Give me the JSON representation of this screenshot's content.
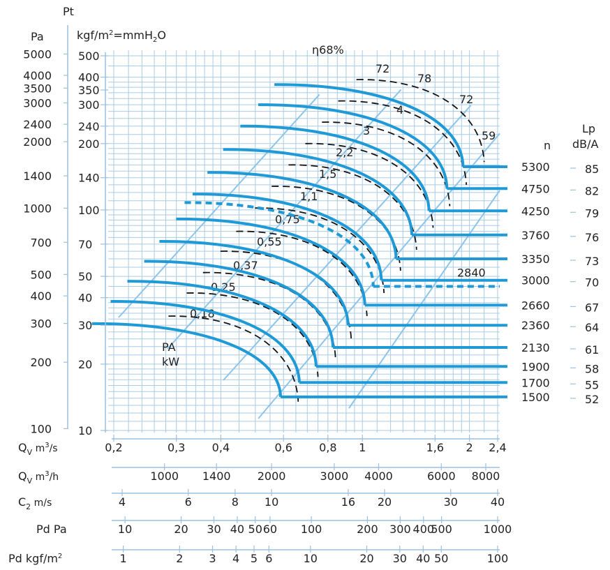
{
  "chart_data": {
    "type": "line",
    "title": "",
    "axes": {
      "pt_label": "Pt",
      "pa_label": "Pa",
      "kgf_label_parts": {
        "pre": "kgf/m",
        "sup": "2",
        "mid": "=mmH",
        "sub": "2",
        "post": "O"
      },
      "pa_ticks": [
        "5000",
        "4000",
        "3500",
        "3000",
        "2400",
        "2000",
        "1400",
        "1000",
        "700",
        "500",
        "400",
        "300",
        "200",
        "100"
      ],
      "kgf_ticks": [
        "500",
        "400",
        "350",
        "300",
        "240",
        "200",
        "140",
        "100",
        "70",
        "50",
        "40",
        "30",
        "20",
        "10"
      ],
      "ylim_kgf": [
        10,
        500
      ],
      "scale": "log"
    },
    "x_scales": [
      {
        "label": "Q",
        "label_sub": "V",
        "unit": " m",
        "unit_sup": "3",
        "unit_post": "/s",
        "ticks": [
          "0,2",
          "0,3",
          "0,4",
          "0,6",
          "0,8",
          "1",
          "1,6",
          "2",
          "2,4"
        ]
      },
      {
        "label": "Q",
        "label_sub": "V",
        "unit": " m",
        "unit_sup": "3",
        "unit_post": "/h",
        "ticks": [
          "1000",
          "1400",
          "2000",
          "3000",
          "4000",
          "6000",
          "8000"
        ]
      },
      {
        "label": "C",
        "label_sub": "2",
        "unit": " m/s",
        "unit_sup": "",
        "unit_post": "",
        "ticks": [
          "4",
          "6",
          "8",
          "10",
          "16",
          "20",
          "30",
          "40"
        ]
      },
      {
        "label": "Pd Pa",
        "label_sub": "",
        "unit": "",
        "unit_sup": "",
        "unit_post": "",
        "ticks": [
          "10",
          "20",
          "30",
          "40",
          "50",
          "60",
          "100",
          "200",
          "300",
          "400",
          "500",
          "1000"
        ]
      },
      {
        "label": "Pd kgf/m",
        "label_sub": "",
        "unit": "",
        "unit_sup": "2",
        "unit_post": "",
        "ticks": [
          "1",
          "2",
          "3",
          "4",
          "5",
          "6",
          "10",
          "20",
          "30",
          "40",
          "50",
          "100"
        ]
      }
    ],
    "efficiency_lines": [
      "η68%",
      "72",
      "78",
      "72",
      "59"
    ],
    "power_labels": [
      "0,18",
      "0,25",
      "0,37",
      "0,55",
      "0,75",
      "1,1",
      "1,5",
      "2,2",
      "3",
      "4"
    ],
    "power_axis_label": [
      "PA",
      "kW"
    ],
    "speed_header": "n",
    "noise_header": [
      "Lp",
      "dB/A"
    ],
    "speed_curves": [
      {
        "n": "1500",
        "lp": "52",
        "qmax_m3s": 0.62,
        "pt_left_kgf": 30.5,
        "pt_right_kgf": 14.2
      },
      {
        "n": "1700",
        "lp": "55",
        "qmax_m3s": 0.7,
        "pt_left_kgf": 38.5,
        "pt_right_kgf": 16.5
      },
      {
        "n": "1900",
        "lp": "58",
        "qmax_m3s": 0.78,
        "pt_left_kgf": 47.5,
        "pt_right_kgf": 19.5
      },
      {
        "n": "2130",
        "lp": "61",
        "qmax_m3s": 0.87,
        "pt_left_kgf": 58.5,
        "pt_right_kgf": 23.8
      },
      {
        "n": "2360",
        "lp": "64",
        "qmax_m3s": 0.96,
        "pt_left_kgf": 72.0,
        "pt_right_kgf": 30.0
      },
      {
        "n": "2660",
        "lp": "67",
        "qmax_m3s": 1.07,
        "pt_left_kgf": 91.0,
        "pt_right_kgf": 37.0
      },
      {
        "n": "3000",
        "lp": "70",
        "qmax_m3s": 1.19,
        "pt_left_kgf": 118.0,
        "pt_right_kgf": 48.0
      },
      {
        "n": "3350",
        "lp": "73",
        "qmax_m3s": 1.31,
        "pt_left_kgf": 148.0,
        "pt_right_kgf": 60.0
      },
      {
        "n": "3760",
        "lp": "76",
        "qmax_m3s": 1.45,
        "pt_left_kgf": 188.0,
        "pt_right_kgf": 77.0
      },
      {
        "n": "4250",
        "lp": "79",
        "qmax_m3s": 1.62,
        "pt_left_kgf": 240.0,
        "pt_right_kgf": 99.0
      },
      {
        "n": "4750",
        "lp": "82",
        "qmax_m3s": 1.82,
        "pt_left_kgf": 300.0,
        "pt_right_kgf": 125.0
      },
      {
        "n": "5300",
        "lp": "85",
        "qmax_m3s": 2.02,
        "pt_left_kgf": 370.0,
        "pt_right_kgf": 157.0
      }
    ],
    "dashed_curve": {
      "n": "2840",
      "pt_left_kgf": 108.0,
      "pt_right_kgf": 45.0,
      "qmax_m3s": 1.13
    }
  }
}
